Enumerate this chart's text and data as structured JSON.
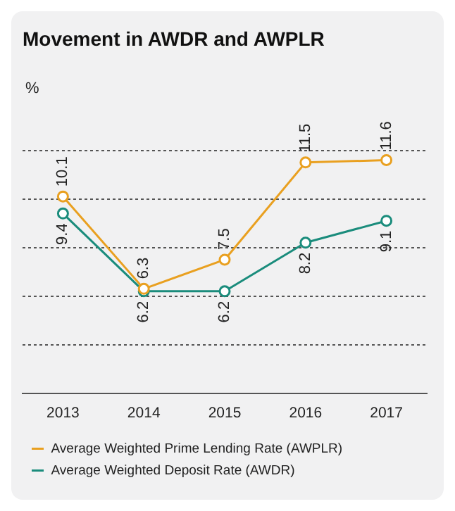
{
  "chart_data": {
    "type": "line",
    "title": "Movement in AWDR and AWPLR",
    "ylabel": "%",
    "categories": [
      "2013",
      "2014",
      "2015",
      "2016",
      "2017"
    ],
    "series": [
      {
        "name": "Average Weighted Prime Lending Rate (AWPLR)",
        "color": "#e9a020",
        "values": [
          10.1,
          6.3,
          7.5,
          11.5,
          11.6
        ]
      },
      {
        "name": "Average Weighted Deposit Rate (AWDR)",
        "color": "#1a8c7c",
        "values": [
          9.4,
          6.2,
          6.2,
          8.2,
          9.1
        ]
      }
    ],
    "ylim": [
      2,
      12
    ],
    "yticks": [
      {
        "value": 4,
        "label": null
      },
      {
        "value": 6,
        "label": null
      },
      {
        "value": 8,
        "label": null
      },
      {
        "value": 10,
        "label": null
      },
      {
        "value": 12,
        "label": null
      }
    ],
    "tick_labels": "x",
    "grid": "y",
    "legend": "bottom",
    "marker": "circle",
    "line_style": "solid",
    "data_labels": true
  }
}
